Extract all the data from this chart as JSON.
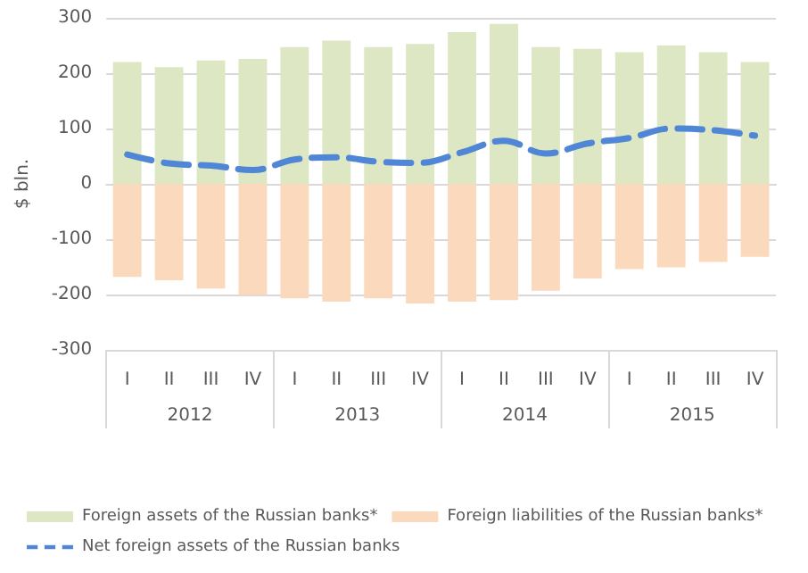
{
  "chart_data": {
    "type": "bar",
    "ylabel": "$ bln.",
    "categories": [
      "I",
      "II",
      "III",
      "IV",
      "I",
      "II",
      "III",
      "IV",
      "I",
      "II",
      "III",
      "IV",
      "I",
      "II",
      "III",
      "IV"
    ],
    "annotations": [
      "2012",
      "2013",
      "2014",
      "2015"
    ],
    "stacked": true,
    "series": [
      {
        "name": "Foreign assets of the Russian banks*",
        "color": "#dde7c3",
        "values": [
          220,
          211,
          223,
          226,
          247,
          259,
          247,
          253,
          274,
          289,
          247,
          244,
          238,
          250,
          238,
          220
        ]
      },
      {
        "name": "Foreign liabilities of the Russian banks*",
        "color": "#fbd9bc",
        "values": [
          -168,
          -174,
          -189,
          -201,
          -207,
          -213,
          -207,
          -216,
          -213,
          -210,
          -193,
          -171,
          -154,
          -151,
          -141,
          -132
        ]
      },
      {
        "name": "Net foreign assets of the Russian banks",
        "type": "line",
        "line_style": "dashed",
        "marker": "none",
        "color": "#4f86d6",
        "values": [
          53,
          37,
          33,
          25,
          44,
          48,
          40,
          38,
          57,
          78,
          55,
          73,
          83,
          100,
          97,
          87
        ]
      }
    ],
    "ylim": [
      -300,
      300
    ],
    "yticks": [
      -300,
      -200,
      -100,
      0,
      100,
      200,
      300
    ],
    "grid": "y",
    "legend": "bottom"
  }
}
